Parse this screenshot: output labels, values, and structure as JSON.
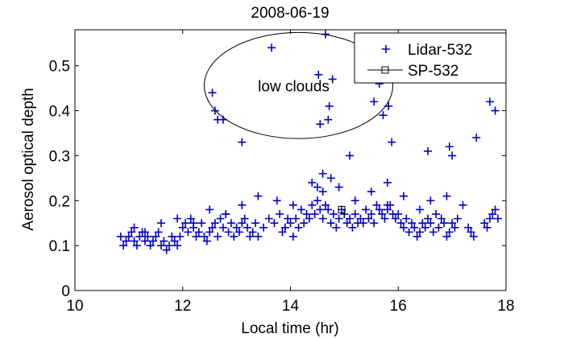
{
  "chart_data": {
    "type": "scatter",
    "title": "2008-06-19",
    "xlabel": "Local time (hr)",
    "ylabel": "Aerosol optical depth",
    "xlim": [
      10,
      18
    ],
    "ylim": [
      0,
      0.58
    ],
    "xticks": [
      10,
      12,
      14,
      16,
      18
    ],
    "yticks": [
      0,
      0.1,
      0.2,
      0.3,
      0.4,
      0.5
    ],
    "xtick_labels": [
      "10",
      "12",
      "14",
      "16",
      "18"
    ],
    "ytick_labels": [
      "0",
      "0.1",
      "0.2",
      "0.3",
      "0.4",
      "0.5"
    ],
    "grid": false,
    "legend_position": "top-right",
    "annotation": {
      "text": "low clouds",
      "center": [
        14.15,
        0.456
      ],
      "radii": [
        1.75,
        0.118
      ]
    },
    "series": [
      {
        "name": "Lidar-532",
        "marker": "plus",
        "color": "#0000cc",
        "x": [
          10.85,
          10.9,
          10.95,
          11.0,
          11.05,
          11.1,
          11.15,
          11.2,
          11.25,
          11.3,
          11.35,
          11.4,
          11.45,
          11.5,
          11.55,
          11.6,
          11.65,
          11.7,
          11.75,
          11.8,
          11.85,
          11.9,
          11.95,
          12.0,
          12.05,
          12.1,
          12.15,
          12.2,
          12.25,
          12.3,
          12.35,
          12.4,
          12.45,
          12.5,
          12.55,
          12.6,
          12.65,
          12.7,
          12.75,
          12.8,
          12.85,
          12.9,
          12.95,
          13.0,
          13.05,
          13.1,
          13.15,
          13.2,
          13.25,
          13.3,
          13.35,
          13.4,
          13.5,
          13.6,
          13.7,
          13.8,
          13.85,
          13.9,
          13.95,
          14.0,
          14.05,
          14.1,
          14.15,
          14.2,
          14.25,
          14.3,
          14.35,
          14.4,
          14.45,
          14.5,
          14.55,
          14.6,
          14.65,
          14.7,
          14.75,
          14.8,
          14.85,
          14.9,
          14.95,
          15.0,
          15.05,
          15.1,
          15.15,
          15.2,
          15.25,
          15.3,
          15.35,
          15.4,
          15.45,
          15.5,
          15.55,
          15.6,
          15.65,
          15.7,
          15.75,
          15.8,
          15.85,
          15.9,
          15.95,
          16.0,
          16.05,
          16.1,
          16.15,
          16.2,
          16.25,
          16.3,
          16.35,
          16.4,
          16.45,
          16.5,
          16.55,
          16.6,
          16.65,
          16.7,
          16.75,
          16.8,
          16.85,
          16.9,
          16.95,
          17.0,
          17.05,
          17.1,
          17.3,
          17.35,
          17.4,
          17.6,
          17.65,
          17.7,
          17.75,
          17.8,
          17.85,
          11.1,
          11.3,
          11.6,
          11.9,
          12.2,
          12.5,
          12.8,
          13.1,
          13.4,
          13.75,
          14.05,
          14.4,
          14.6,
          14.9,
          15.2,
          15.5,
          15.8,
          16.1,
          16.4,
          16.6,
          16.9,
          17.2,
          12.55,
          12.6,
          12.65,
          12.75,
          13.1,
          13.65,
          14.52,
          14.55,
          14.65,
          14.7,
          14.72,
          14.78,
          15.1,
          15.55,
          15.65,
          15.72,
          15.82,
          15.88,
          16.55,
          16.95,
          17.0,
          17.45,
          17.7,
          17.8,
          14.5,
          14.6,
          14.75,
          15.8
        ],
        "y": [
          0.12,
          0.1,
          0.11,
          0.12,
          0.13,
          0.11,
          0.1,
          0.12,
          0.13,
          0.11,
          0.12,
          0.1,
          0.11,
          0.12,
          0.13,
          0.1,
          0.11,
          0.09,
          0.1,
          0.12,
          0.11,
          0.1,
          0.12,
          0.14,
          0.15,
          0.13,
          0.16,
          0.14,
          0.12,
          0.13,
          0.15,
          0.12,
          0.11,
          0.13,
          0.14,
          0.15,
          0.12,
          0.16,
          0.14,
          0.17,
          0.13,
          0.15,
          0.12,
          0.14,
          0.13,
          0.15,
          0.16,
          0.14,
          0.12,
          0.13,
          0.15,
          0.12,
          0.14,
          0.16,
          0.15,
          0.17,
          0.13,
          0.14,
          0.16,
          0.15,
          0.12,
          0.16,
          0.14,
          0.18,
          0.15,
          0.17,
          0.16,
          0.19,
          0.17,
          0.2,
          0.18,
          0.16,
          0.19,
          0.18,
          0.15,
          0.17,
          0.14,
          0.16,
          0.18,
          0.17,
          0.15,
          0.16,
          0.14,
          0.17,
          0.15,
          0.16,
          0.15,
          0.18,
          0.16,
          0.17,
          0.15,
          0.19,
          0.18,
          0.17,
          0.16,
          0.18,
          0.19,
          0.17,
          0.16,
          0.17,
          0.15,
          0.14,
          0.16,
          0.13,
          0.15,
          0.14,
          0.12,
          0.13,
          0.15,
          0.14,
          0.16,
          0.15,
          0.13,
          0.17,
          0.14,
          0.16,
          0.15,
          0.12,
          0.13,
          0.15,
          0.14,
          0.16,
          0.14,
          0.13,
          0.12,
          0.15,
          0.14,
          0.16,
          0.17,
          0.18,
          0.16,
          0.14,
          0.13,
          0.15,
          0.16,
          0.15,
          0.18,
          0.17,
          0.19,
          0.21,
          0.2,
          0.19,
          0.24,
          0.22,
          0.23,
          0.2,
          0.22,
          0.19,
          0.21,
          0.18,
          0.2,
          0.21,
          0.19,
          0.44,
          0.4,
          0.38,
          0.38,
          0.33,
          0.54,
          0.48,
          0.37,
          0.57,
          0.38,
          0.41,
          0.47,
          0.3,
          0.42,
          0.46,
          0.39,
          0.41,
          0.33,
          0.31,
          0.32,
          0.3,
          0.34,
          0.42,
          0.4,
          0.23,
          0.26,
          0.25,
          0.24
        ]
      },
      {
        "name": "SP-532",
        "marker": "square",
        "color": "#000000",
        "x": [
          14.95
        ],
        "y": [
          0.18
        ]
      }
    ]
  }
}
